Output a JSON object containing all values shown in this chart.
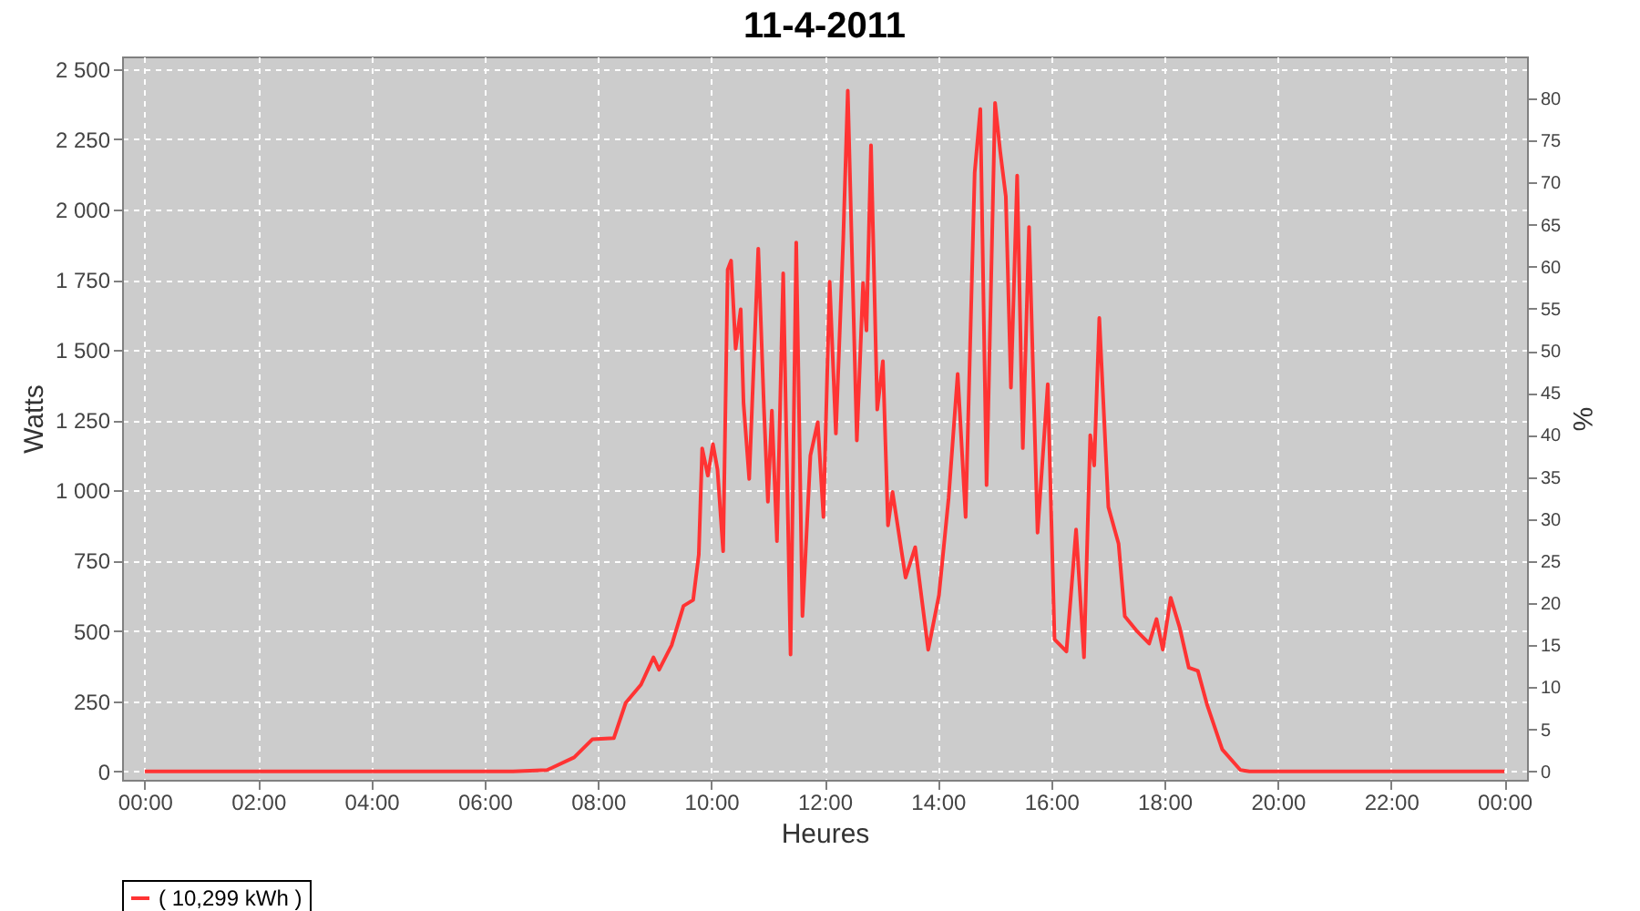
{
  "chart_data": {
    "type": "line",
    "title": "11-4-2011",
    "xlabel": "Heures",
    "ylabel": "Watts",
    "y2label": "%",
    "x": [
      0,
      6.5,
      7.1,
      7.19,
      7.58,
      7.9,
      8.28,
      8.49,
      8.76,
      8.98,
      9.08,
      9.3,
      9.51,
      9.68,
      9.78,
      9.84,
      9.94,
      10.03,
      10.11,
      10.21,
      10.29,
      10.35,
      10.43,
      10.52,
      10.57,
      10.67,
      10.83,
      10.93,
      11.0,
      11.07,
      11.16,
      11.27,
      11.4,
      11.5,
      11.61,
      11.75,
      11.88,
      11.98,
      12.09,
      12.2,
      12.33,
      12.41,
      12.57,
      12.68,
      12.74,
      12.82,
      12.93,
      13.03,
      13.12,
      13.2,
      13.43,
      13.6,
      13.83,
      14.02,
      14.19,
      14.35,
      14.49,
      14.65,
      14.75,
      14.86,
      15.01,
      15.1,
      15.2,
      15.29,
      15.4,
      15.5,
      15.61,
      15.76,
      15.94,
      16.06,
      16.27,
      16.44,
      16.58,
      16.69,
      16.76,
      16.85,
      17.01,
      17.19,
      17.3,
      17.52,
      17.73,
      17.86,
      17.97,
      18.11,
      18.27,
      18.43,
      18.59,
      18.75,
      19.02,
      19.34,
      19.5,
      24
    ],
    "series": [
      {
        "name": "( 10,299 kWh )",
        "color": "#ff3333",
        "values": [
          0,
          0,
          5,
          13,
          50,
          114,
          118,
          244,
          309,
          406,
          362,
          449,
          589,
          610,
          772,
          1150,
          1053,
          1165,
          1075,
          784,
          1786,
          1818,
          1505,
          1645,
          1311,
          1041,
          1861,
          1294,
          960,
          1284,
          820,
          1773,
          416,
          1883,
          553,
          1124,
          1243,
          906,
          1743,
          1203,
          1894,
          2423,
          1178,
          1738,
          1570,
          2229,
          1288,
          1460,
          876,
          995,
          690,
          798,
          433,
          628,
          973,
          1415,
          906,
          2131,
          2358,
          1019,
          2380,
          2208,
          2046,
          1366,
          2121,
          1151,
          1938,
          850,
          1378,
          470,
          427,
          861,
          406,
          1197,
          1089,
          1614,
          941,
          811,
          552,
          498,
          455,
          542,
          434,
          618,
          511,
          369,
          358,
          239,
          78,
          5,
          0,
          0
        ]
      }
    ],
    "xlim": [
      -0.4,
      24.4
    ],
    "xticks": [
      {
        "value": 0,
        "label": "00:00"
      },
      {
        "value": 2,
        "label": "02:00"
      },
      {
        "value": 4,
        "label": "04:00"
      },
      {
        "value": 6,
        "label": "06:00"
      },
      {
        "value": 8,
        "label": "08:00"
      },
      {
        "value": 10,
        "label": "10:00"
      },
      {
        "value": 12,
        "label": "12:00"
      },
      {
        "value": 14,
        "label": "14:00"
      },
      {
        "value": 16,
        "label": "16:00"
      },
      {
        "value": 18,
        "label": "18:00"
      },
      {
        "value": 20,
        "label": "20:00"
      },
      {
        "value": 22,
        "label": "22:00"
      },
      {
        "value": 24,
        "label": "00:00"
      }
    ],
    "ylim": [
      -30,
      2545
    ],
    "yticks": [
      0,
      250,
      500,
      750,
      {
        "value": 1000,
        "label": "1 000"
      },
      {
        "value": 1250,
        "label": "1 250"
      },
      {
        "value": 1500,
        "label": "1 500"
      },
      {
        "value": 1750,
        "label": "1 750"
      },
      {
        "value": 2000,
        "label": "2 000"
      },
      {
        "value": 2250,
        "label": "2 250"
      },
      {
        "value": 2500,
        "label": "2 500"
      }
    ],
    "y2lim": [
      -1,
      85
    ],
    "y2ticks": [
      0,
      5,
      10,
      15,
      20,
      25,
      30,
      35,
      40,
      45,
      50,
      55,
      60,
      65,
      70,
      75,
      80
    ],
    "grid": true,
    "legend": "bottom"
  }
}
